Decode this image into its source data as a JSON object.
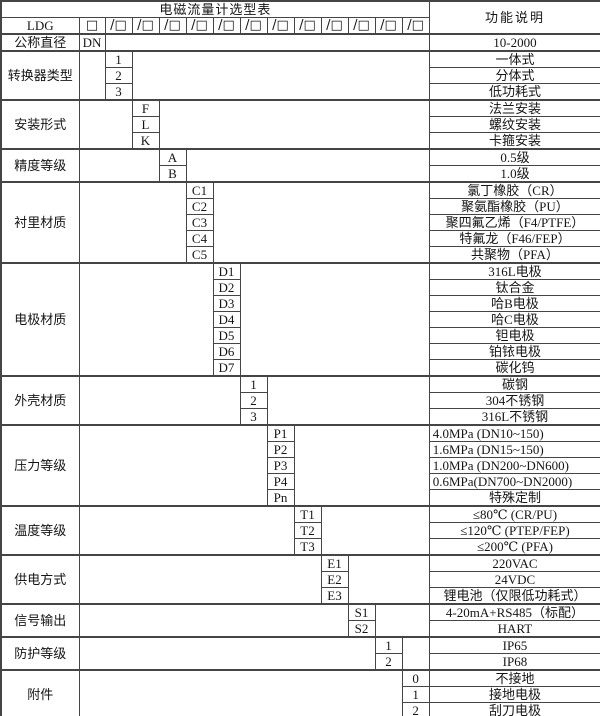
{
  "title": "电磁流量计选型表",
  "right_header": "功能说明",
  "model_row": {
    "prefix": "LDG",
    "box": "□",
    "slots": [
      "/□",
      "/□",
      "/□",
      "/□",
      "/□",
      "/□",
      "/□",
      "/□",
      "/□",
      "/□",
      "/□",
      "/□"
    ]
  },
  "layout_colors": {
    "border": "#454545",
    "background": "#ffffff",
    "text": "#151515"
  },
  "sections": [
    {
      "label": "公称直径",
      "code_col": 2,
      "rows": [
        {
          "code": "DN",
          "desc": "10-2000"
        }
      ]
    },
    {
      "label": "转换器类型",
      "code_col": 3,
      "rows": [
        {
          "code": "1",
          "desc": "一体式"
        },
        {
          "code": "2",
          "desc": "分体式"
        },
        {
          "code": "3",
          "desc": "低功耗式"
        }
      ]
    },
    {
      "label": "安装形式",
      "code_col": 4,
      "rows": [
        {
          "code": "F",
          "desc": "法兰安装"
        },
        {
          "code": "L",
          "desc": "螺纹安装"
        },
        {
          "code": "K",
          "desc": "卡箍安装"
        }
      ]
    },
    {
      "label": "精度等级",
      "code_col": 5,
      "rows": [
        {
          "code": "A",
          "desc": "0.5级"
        },
        {
          "code": "B",
          "desc": "1.0级"
        }
      ]
    },
    {
      "label": "衬里材质",
      "code_col": 6,
      "rows": [
        {
          "code": "C1",
          "desc": "氯丁橡胶（CR）"
        },
        {
          "code": "C2",
          "desc": "聚氨酯橡胶（PU）"
        },
        {
          "code": "C3",
          "desc": "聚四氟乙烯（F4/PTFE）"
        },
        {
          "code": "C4",
          "desc": "特氟龙（F46/FEP）"
        },
        {
          "code": "C5",
          "desc": "共聚物（PFA）"
        }
      ]
    },
    {
      "label": "电极材质",
      "code_col": 7,
      "rows": [
        {
          "code": "D1",
          "desc": "316L电极"
        },
        {
          "code": "D2",
          "desc": "钛合金"
        },
        {
          "code": "D3",
          "desc": "哈B电极"
        },
        {
          "code": "D4",
          "desc": "哈C电极"
        },
        {
          "code": "D5",
          "desc": "钽电极"
        },
        {
          "code": "D6",
          "desc": "铂铱电极"
        },
        {
          "code": "D7",
          "desc": "碳化钨"
        }
      ]
    },
    {
      "label": "外壳材质",
      "code_col": 8,
      "rows": [
        {
          "code": "1",
          "desc": "碳钢"
        },
        {
          "code": "2",
          "desc": "304不锈钢"
        },
        {
          "code": "3",
          "desc": "316L不锈钢"
        }
      ]
    },
    {
      "label": "压力等级",
      "code_col": 9,
      "rows": [
        {
          "code": "P1",
          "desc": "4.0MPa (DN10~150)",
          "align": "left"
        },
        {
          "code": "P2",
          "desc": "1.6MPa (DN15~150)",
          "align": "left"
        },
        {
          "code": "P3",
          "desc": "1.0MPa (DN200~DN600)",
          "align": "left"
        },
        {
          "code": "P4",
          "desc": "0.6MPa(DN700~DN2000)",
          "align": "left"
        },
        {
          "code": "Pn",
          "desc": "特殊定制"
        }
      ]
    },
    {
      "label": "温度等级",
      "code_col": 10,
      "rows": [
        {
          "code": "T1",
          "desc": "≤80℃ (CR/PU)"
        },
        {
          "code": "T2",
          "desc": "≤120℃ (PTEP/FEP)"
        },
        {
          "code": "T3",
          "desc": "≤200℃ (PFA)"
        }
      ]
    },
    {
      "label": "供电方式",
      "code_col": 11,
      "rows": [
        {
          "code": "E1",
          "desc": "220VAC"
        },
        {
          "code": "E2",
          "desc": "24VDC"
        },
        {
          "code": "E3",
          "desc": "锂电池（仅限低功耗式）"
        }
      ]
    },
    {
      "label": "信号输出",
      "code_col": 12,
      "rows": [
        {
          "code": "S1",
          "desc": "4-20mA+RS485（标配）"
        },
        {
          "code": "S2",
          "desc": "HART"
        }
      ]
    },
    {
      "label": "防护等级",
      "code_col": 13,
      "rows": [
        {
          "code": "1",
          "desc": "IP65"
        },
        {
          "code": "2",
          "desc": "IP68"
        }
      ]
    },
    {
      "label": "附件",
      "code_col": 14,
      "rows": [
        {
          "code": "0",
          "desc": "不接地"
        },
        {
          "code": "1",
          "desc": "接地电极"
        },
        {
          "code": "2",
          "desc": "刮刀电极"
        }
      ]
    }
  ]
}
